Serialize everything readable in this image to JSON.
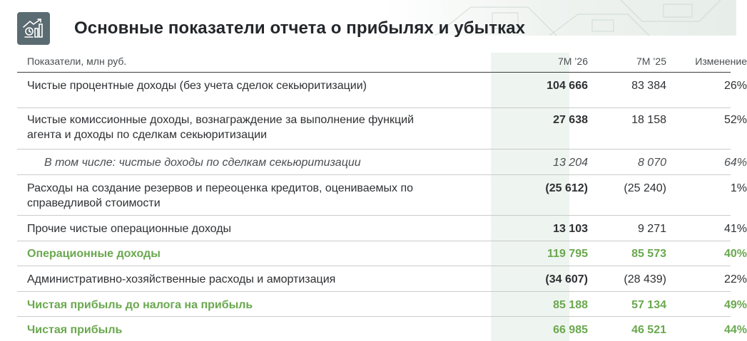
{
  "title": "Основные показатели отчета о прибылях и убытках",
  "icon": "growth-chart-icon",
  "colors": {
    "accent": "#6aa84f",
    "highlight": "#eef4ef",
    "icon_bg": "#5b6b72"
  },
  "columns": {
    "label": "Показатели, млн руб.",
    "current": "7M ’26",
    "previous": "7M ’25",
    "change": "Изменение"
  },
  "rows": [
    {
      "label": "Чистые процентные доходы (без учета сделок секьюритизации)",
      "current": "104 666",
      "previous": "83 384",
      "change": "26%"
    },
    {
      "label": "Чистые комиссионные доходы, вознаграждение за выполнение функций агента и доходы по сделкам секьюритизации",
      "current": "27 638",
      "previous": "18 158",
      "change": "52%"
    },
    {
      "label": "В том числе: чистые доходы по сделкам секьюритизации",
      "current": "13 204",
      "previous": "8 070",
      "change": "64%"
    },
    {
      "label": "Расходы на создание резервов и переоценка кредитов, оцениваемых по справедливой стоимости",
      "current": "(25 612)",
      "previous": "(25 240)",
      "change": "1%"
    },
    {
      "label": "Прочие чистые операционные доходы",
      "current": "13 103",
      "previous": "9 271",
      "change": "41%"
    },
    {
      "label": "Операционные доходы",
      "current": "119 795",
      "previous": "85 573",
      "change": "40%"
    },
    {
      "label": "Административно-хозяйственные расходы и амортизация",
      "current": "(34 607)",
      "previous": "(28 439)",
      "change": "22%"
    },
    {
      "label": "Чистая прибыль до налога на прибыль",
      "current": "85 188",
      "previous": "57 134",
      "change": "49%"
    },
    {
      "label": "Чистая прибыль",
      "current": "66 985",
      "previous": "46 521",
      "change": "44%"
    }
  ]
}
